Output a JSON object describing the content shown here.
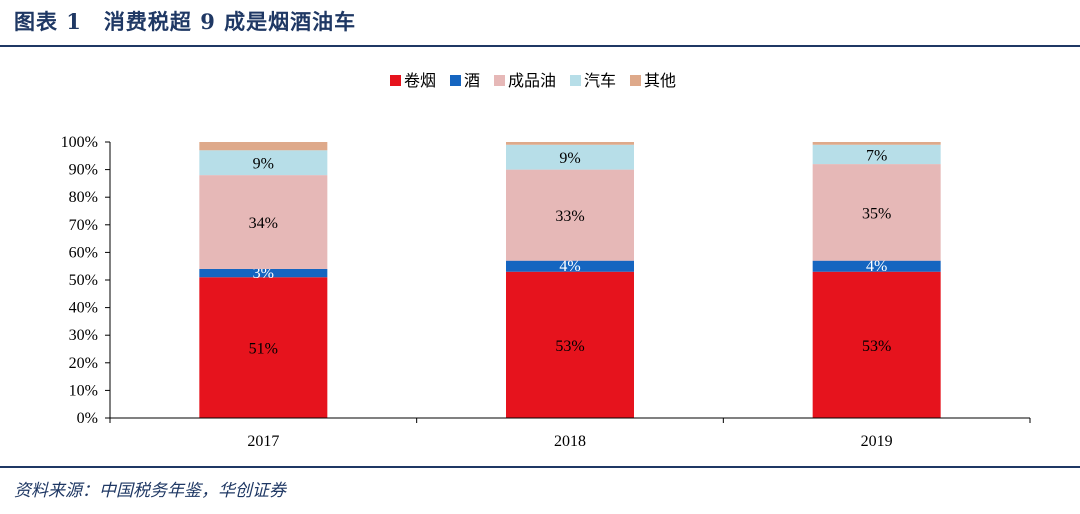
{
  "figure": {
    "title": "图表 1　消费税超 9 成是烟酒油车",
    "source": "资料来源：中国税务年鉴，华创证券"
  },
  "chart_data": {
    "type": "bar",
    "stacked": true,
    "categories": [
      "2017",
      "2018",
      "2019"
    ],
    "series": [
      {
        "name": "卷烟",
        "color": "#e6131d",
        "values": [
          51,
          53,
          53
        ],
        "labels": [
          "51%",
          "53%",
          "53%"
        ]
      },
      {
        "name": "酒",
        "color": "#1565c0",
        "values": [
          3,
          4,
          4
        ],
        "labels": [
          "3%",
          "4%",
          "4%"
        ]
      },
      {
        "name": "成品油",
        "color": "#e6b8b7",
        "values": [
          34,
          33,
          35
        ],
        "labels": [
          "34%",
          "33%",
          "35%"
        ]
      },
      {
        "name": "汽车",
        "color": "#b7dee8",
        "values": [
          9,
          9,
          7
        ],
        "labels": [
          "9%",
          "9%",
          "7%"
        ]
      },
      {
        "name": "其他",
        "color": "#dea98a",
        "values": [
          3,
          1,
          1
        ],
        "labels": [
          "",
          "",
          ""
        ]
      }
    ],
    "yticks": [
      "0%",
      "10%",
      "20%",
      "30%",
      "40%",
      "50%",
      "60%",
      "70%",
      "80%",
      "90%",
      "100%"
    ],
    "ylim": [
      0,
      100
    ],
    "legend_position": "top-center",
    "grid": false
  }
}
